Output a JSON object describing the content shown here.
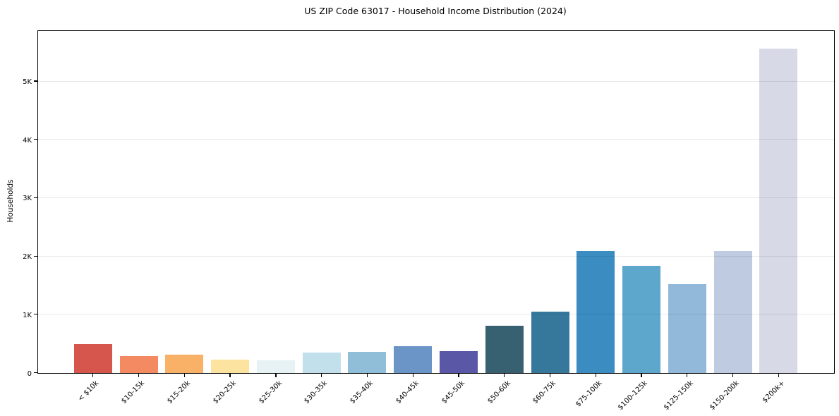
{
  "figure": {
    "background": "#ffffff",
    "spine_color": "#000000",
    "grid_color": "#e9e9e9"
  },
  "chart_data": {
    "type": "bar",
    "title": "US ZIP Code 63017 - Household Income Distribution (2024)",
    "xlabel": "",
    "ylabel": "Households",
    "legend": "none",
    "grid": "horizontal-only, drawn over bars",
    "ylim": [
      0,
      5860
    ],
    "yticks": [
      {
        "value": 0,
        "label": "0"
      },
      {
        "value": 1000,
        "label": "1K"
      },
      {
        "value": 2000,
        "label": "2K"
      },
      {
        "value": 3000,
        "label": "3K"
      },
      {
        "value": 4000,
        "label": "4K"
      },
      {
        "value": 5000,
        "label": "5K"
      }
    ],
    "categories": [
      "< $10k",
      "$10-15k",
      "$15-20k",
      "$20-25k",
      "$25-30k",
      "$30-35k",
      "$35-40k",
      "$40-45k",
      "$45-50k",
      "$50-60k",
      "$60-75k",
      "$75-100k",
      "$100-125k",
      "$125-150k",
      "$150-200k",
      "$200k+"
    ],
    "values": [
      490,
      290,
      310,
      225,
      210,
      345,
      360,
      455,
      365,
      805,
      1050,
      2085,
      1835,
      1520,
      2090,
      5560
    ],
    "bar_colors": [
      "#d6564d",
      "#f48a62",
      "#f9b168",
      "#fce3a0",
      "#e6f2f4",
      "#c1e0eb",
      "#90bdd8",
      "#6b94c7",
      "#5a57a6",
      "#376070",
      "#35789c",
      "#3a8cc1",
      "#5da7cc",
      "#92b9da",
      "#bfcbe0",
      "#d8d9e7"
    ]
  }
}
